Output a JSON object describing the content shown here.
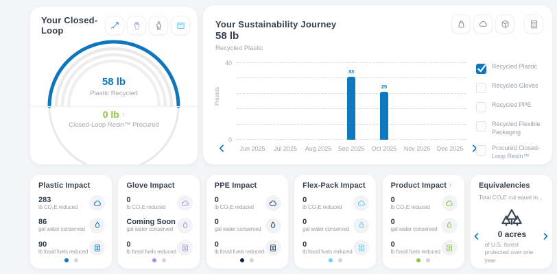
{
  "colors": {
    "background": "#f4f5f7",
    "primary_blue": "#0e76bc",
    "green": "#8dc63f",
    "purple": "#ab93dd",
    "navy": "#1d3a5f",
    "cyan": "#5fc8ef",
    "text_dark": "#363f4c",
    "text_gray": "#9aa0a6"
  },
  "closed_loop_card": {
    "title": "Your Closed-Loop",
    "toolbar_icons": [
      "pipette-icon",
      "glove-icon",
      "gown-icon",
      "tray-icon"
    ],
    "primary_value": "58 lb",
    "primary_label": "Plastic Recycled",
    "secondary_value": "0 lb",
    "secondary_trend": "↑",
    "secondary_label": "Closed-Loop Resin™ Procured"
  },
  "journey_card": {
    "title": "Your Sustainability Journey",
    "toolbar_icons": [
      "weight-icon",
      "cloud-icon",
      "cube-icon",
      "calculator-icon"
    ],
    "total_value": "58 lb",
    "total_label": "Recycled Plastic",
    "legend": [
      {
        "label": "Recycled Plastic",
        "checked": true
      },
      {
        "label": "Recycled Gloves",
        "checked": false
      },
      {
        "label": "Recycled PPE",
        "checked": false
      },
      {
        "label": "Recycled Flexible Packaging",
        "checked": false
      },
      {
        "label": "Procured Closed-Loop Resin™",
        "checked": false
      }
    ]
  },
  "chart_data": {
    "type": "bar",
    "series_name": "Recycled Plastic",
    "categories": [
      "Jun 2025",
      "Jul 2025",
      "Aug 2025",
      "Sep 2025",
      "Oct 2025",
      "Nov 2025",
      "Dec 2025"
    ],
    "values": [
      0,
      0,
      0,
      33,
      25,
      0,
      0
    ],
    "ylabel": "Pounds",
    "ylim": [
      0,
      40
    ],
    "yticks": [
      0,
      40
    ],
    "gridlines": [
      0,
      8,
      16,
      24,
      32,
      40
    ],
    "grid_style": "dashed",
    "bar_color": "#0f79bf",
    "data_labels": true,
    "legend_position": "right",
    "nav": {
      "prev": "‹",
      "next": "›"
    }
  },
  "impact_cards": [
    {
      "title": "Plastic Impact",
      "trend": "",
      "accent": "#0e76bc",
      "dot_color": "#0b76bc",
      "metrics": [
        {
          "value": "283",
          "label": "lb CO₂E reduced",
          "icon": "cloud-icon"
        },
        {
          "value": "86",
          "label": "gal water conserved",
          "icon": "droplet-icon"
        },
        {
          "value": "90",
          "label": "lb fossil fuels reduced",
          "icon": "barrel-icon"
        }
      ],
      "pagination": {
        "pages": 2,
        "active": 0
      }
    },
    {
      "title": "Glove Impact",
      "trend": "",
      "accent": "#ab93dd",
      "dot_color": "#a98fd8",
      "metrics": [
        {
          "value": "0",
          "label": "lb CO₂E reduced",
          "icon": "cloud-icon"
        },
        {
          "value": "Coming Soon",
          "label": "gal water conserved",
          "icon": "droplet-icon"
        },
        {
          "value": "0",
          "label": "lb fossil fuels reduced",
          "icon": "barrel-icon"
        }
      ],
      "pagination": {
        "pages": 2,
        "active": 0
      }
    },
    {
      "title": "PPE Impact",
      "trend": "",
      "accent": "#1d3a5f",
      "dot_color": "#0d2240",
      "metrics": [
        {
          "value": "0",
          "label": "lb CO₂E reduced",
          "icon": "cloud-icon"
        },
        {
          "value": "0",
          "label": "gal water conserved",
          "icon": "droplet-icon"
        },
        {
          "value": "0",
          "label": "lb fossil fuels reduced",
          "icon": "barrel-icon"
        }
      ],
      "pagination": {
        "pages": 2,
        "active": 0
      }
    },
    {
      "title": "Flex-Pack Impact",
      "trend": "",
      "accent": "#5fc8ef",
      "dot_color": "#6fcdf2",
      "metrics": [
        {
          "value": "0",
          "label": "lb CO₂E reduced",
          "icon": "cloud-icon"
        },
        {
          "value": "0",
          "label": "gal water conserved",
          "icon": "droplet-icon"
        },
        {
          "value": "0",
          "label": "lb fossil fuels reduced",
          "icon": "barrel-icon"
        }
      ],
      "pagination": {
        "pages": 2,
        "active": 0
      }
    },
    {
      "title": "Product Impact",
      "trend": "↑",
      "accent": "#8cc63f",
      "dot_color": "#8dc63f",
      "metrics": [
        {
          "value": "0",
          "label": "lb CO₂E reduced",
          "icon": "cloud-icon"
        },
        {
          "value": "0",
          "label": "gal water conserved",
          "icon": "droplet-icon"
        },
        {
          "value": "0",
          "label": "lb fossil fuels reduced",
          "icon": "barrel-icon"
        }
      ],
      "pagination": {
        "pages": 2,
        "active": 0
      }
    }
  ],
  "equivalencies_card": {
    "title": "Equivalencies",
    "subtitle": "Total CO₂E cut equal to...",
    "icon": "trees-icon",
    "value": "0 acres",
    "description": "of U.S. forest protected over one year"
  }
}
